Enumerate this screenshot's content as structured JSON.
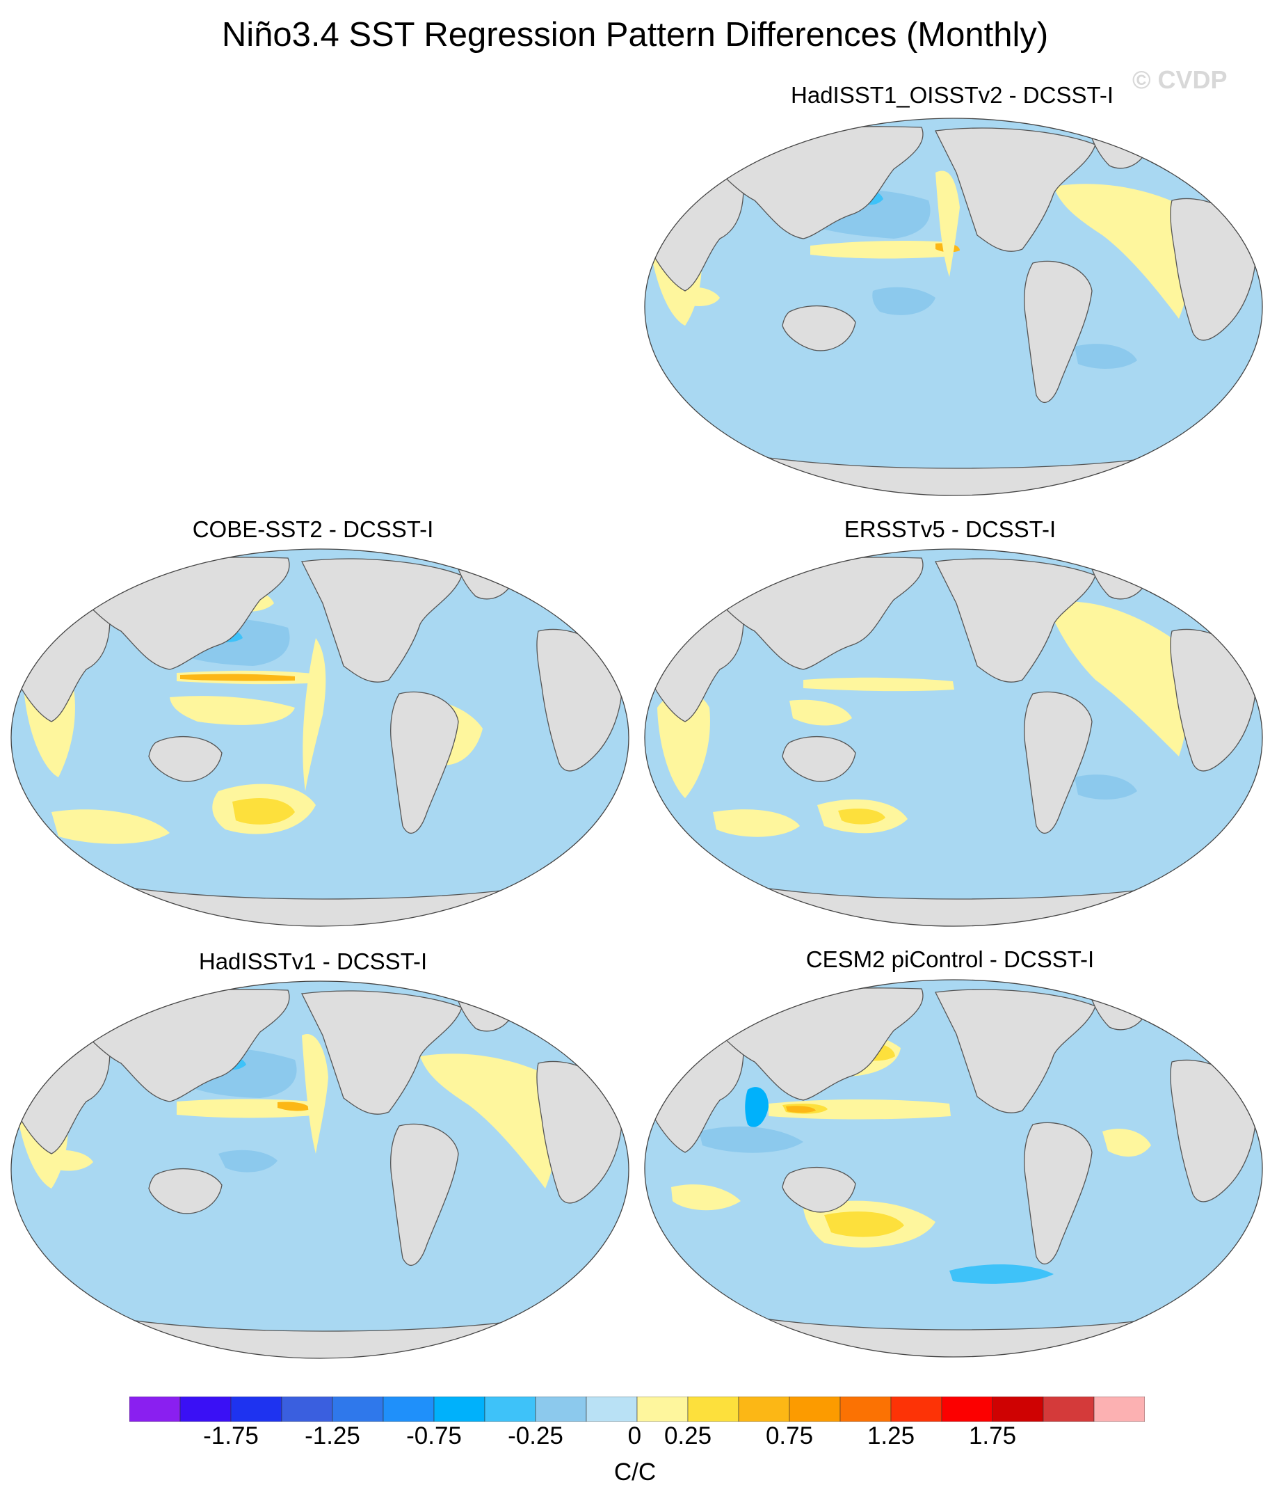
{
  "title": "Niño3.4 SST Regression Pattern Differences (Monthly)",
  "watermark": "© CVDP",
  "panels": [
    {
      "id": "hadisst1-oisstv2",
      "title": "HadISST1_OISSTv2 - DCSST-I",
      "warm_equator": "strong",
      "cold_npac": "strong"
    },
    {
      "id": "cobe-sst2",
      "title": "COBE-SST2 - DCSST-I",
      "warm_equator": "strong",
      "cold_npac": "moderate"
    },
    {
      "id": "ersstv5",
      "title": "ERSSTv5 - DCSST-I",
      "warm_equator": "weak",
      "cold_npac": "weak"
    },
    {
      "id": "hadisstv1",
      "title": "HadISSTv1 - DCSST-I",
      "warm_equator": "strong",
      "cold_npac": "strong"
    },
    {
      "id": "cesm2-picontrol",
      "title": "CESM2 piControl - DCSST-I",
      "warm_equator": "very strong",
      "cold_npac": "moderate"
    }
  ],
  "colorbar": {
    "units": "C/C",
    "colors": [
      "#8a1ff0",
      "#3a10f5",
      "#1e33f0",
      "#3a5fdf",
      "#2f78eb",
      "#1f90fa",
      "#00b1fb",
      "#3ec2f9",
      "#8cc9ed",
      "#b9e1f5",
      "#fef69d",
      "#fde03c",
      "#fcb715",
      "#fc9b00",
      "#fb7203",
      "#fd3306",
      "#fc0000",
      "#cf0202",
      "#d43a3a",
      "#fcb1b2"
    ],
    "tick_labels": [
      "-1.75",
      "-1.25",
      "-0.75",
      "-0.25",
      "0",
      "0.25",
      "0.75",
      "1.25",
      "1.75"
    ],
    "tick_values": [
      -1.75,
      -1.25,
      -0.75,
      -0.25,
      0,
      0.25,
      0.75,
      1.25,
      1.75
    ]
  }
}
